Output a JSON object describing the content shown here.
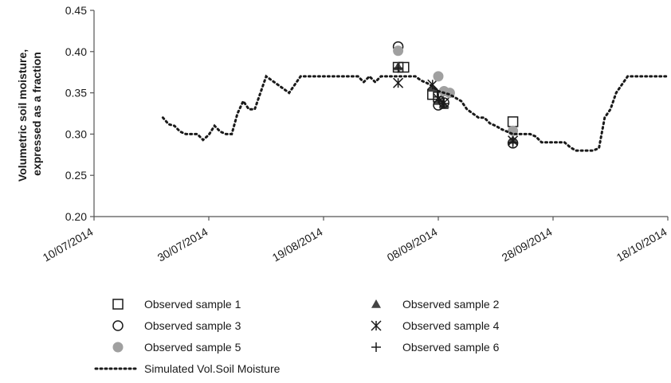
{
  "chart_data": {
    "type": "scatter",
    "title": "",
    "xlabel": "",
    "ylabel": [
      "Volumetric soil moisture,",
      "expressed as a fraction"
    ],
    "xlim": [
      "10/07/2014",
      "18/10/2014"
    ],
    "ylim": [
      0.2,
      0.45
    ],
    "x_ticks": [
      "10/07/2014",
      "30/07/2014",
      "19/08/2014",
      "08/09/2014",
      "28/09/2014",
      "18/10/2014"
    ],
    "y_ticks": [
      "0.20",
      "0.25",
      "0.30",
      "0.35",
      "0.40",
      "0.45"
    ],
    "grid": false,
    "legend_position": "bottom",
    "series": [
      {
        "name": "Observed sample 1",
        "marker": "square-open",
        "color": "#1a1a1a",
        "points": [
          [
            "01/09/2014",
            0.381
          ],
          [
            "02/09/2014",
            0.381
          ],
          [
            "07/09/2014",
            0.348
          ],
          [
            "08/09/2014",
            0.345
          ],
          [
            "21/09/2014",
            0.315
          ]
        ]
      },
      {
        "name": "Observed sample 2",
        "marker": "triangle-filled",
        "color": "#444444",
        "points": [
          [
            "01/09/2014",
            0.382
          ],
          [
            "07/09/2014",
            0.356
          ],
          [
            "08/09/2014",
            0.34
          ],
          [
            "09/09/2014",
            0.335
          ],
          [
            "21/09/2014",
            0.293
          ]
        ]
      },
      {
        "name": "Observed sample 3",
        "marker": "circle-open",
        "color": "#1a1a1a",
        "points": [
          [
            "01/09/2014",
            0.406
          ],
          [
            "08/09/2014",
            0.335
          ],
          [
            "09/09/2014",
            0.338
          ],
          [
            "21/09/2014",
            0.289
          ]
        ]
      },
      {
        "name": "Observed sample 4",
        "marker": "asterisk",
        "color": "#1a1a1a",
        "points": [
          [
            "01/09/2014",
            0.362
          ],
          [
            "07/09/2014",
            0.36
          ],
          [
            "08/09/2014",
            0.343
          ],
          [
            "09/09/2014",
            0.338
          ],
          [
            "21/09/2014",
            0.292
          ]
        ]
      },
      {
        "name": "Observed sample 5",
        "marker": "circle-filled",
        "color": "#a0a0a0",
        "points": [
          [
            "01/09/2014",
            0.401
          ],
          [
            "08/09/2014",
            0.37
          ],
          [
            "09/09/2014",
            0.352
          ],
          [
            "10/09/2014",
            0.35
          ],
          [
            "21/09/2014",
            0.304
          ]
        ]
      },
      {
        "name": "Observed sample 6",
        "marker": "plus",
        "color": "#1a1a1a",
        "points": [
          [
            "01/09/2014",
            0.38
          ],
          [
            "08/09/2014",
            0.345
          ],
          [
            "09/09/2014",
            0.337
          ],
          [
            "21/09/2014",
            0.29
          ]
        ]
      },
      {
        "name": "Simulated Vol.Soil Moisture",
        "marker": "dotted-line",
        "color": "#1a1a1a",
        "points": [
          [
            "22/07/2014",
            0.32
          ],
          [
            "23/07/2014",
            0.312
          ],
          [
            "24/07/2014",
            0.31
          ],
          [
            "25/07/2014",
            0.303
          ],
          [
            "26/07/2014",
            0.3
          ],
          [
            "27/07/2014",
            0.3
          ],
          [
            "28/07/2014",
            0.3
          ],
          [
            "29/07/2014",
            0.293
          ],
          [
            "30/07/2014",
            0.299
          ],
          [
            "31/07/2014",
            0.31
          ],
          [
            "01/08/2014",
            0.303
          ],
          [
            "02/08/2014",
            0.3
          ],
          [
            "03/08/2014",
            0.3
          ],
          [
            "04/08/2014",
            0.325
          ],
          [
            "05/08/2014",
            0.34
          ],
          [
            "06/08/2014",
            0.33
          ],
          [
            "07/08/2014",
            0.33
          ],
          [
            "08/08/2014",
            0.35
          ],
          [
            "09/08/2014",
            0.37
          ],
          [
            "10/08/2014",
            0.365
          ],
          [
            "11/08/2014",
            0.36
          ],
          [
            "12/08/2014",
            0.355
          ],
          [
            "13/08/2014",
            0.35
          ],
          [
            "14/08/2014",
            0.36
          ],
          [
            "15/08/2014",
            0.37
          ],
          [
            "20/08/2014",
            0.37
          ],
          [
            "25/08/2014",
            0.37
          ],
          [
            "26/08/2014",
            0.363
          ],
          [
            "27/08/2014",
            0.37
          ],
          [
            "28/08/2014",
            0.363
          ],
          [
            "29/08/2014",
            0.37
          ],
          [
            "31/08/2014",
            0.37
          ],
          [
            "02/09/2014",
            0.37
          ],
          [
            "04/09/2014",
            0.37
          ],
          [
            "05/09/2014",
            0.365
          ],
          [
            "06/09/2014",
            0.362
          ],
          [
            "07/09/2014",
            0.358
          ],
          [
            "08/09/2014",
            0.352
          ],
          [
            "09/09/2014",
            0.35
          ],
          [
            "10/09/2014",
            0.348
          ],
          [
            "12/09/2014",
            0.34
          ],
          [
            "13/09/2014",
            0.33
          ],
          [
            "14/09/2014",
            0.325
          ],
          [
            "15/09/2014",
            0.32
          ],
          [
            "16/09/2014",
            0.32
          ],
          [
            "17/09/2014",
            0.313
          ],
          [
            "18/09/2014",
            0.31
          ],
          [
            "19/09/2014",
            0.306
          ],
          [
            "20/09/2014",
            0.303
          ],
          [
            "21/09/2014",
            0.3
          ],
          [
            "24/09/2014",
            0.3
          ],
          [
            "25/09/2014",
            0.297
          ],
          [
            "26/09/2014",
            0.29
          ],
          [
            "27/09/2014",
            0.29
          ],
          [
            "30/09/2014",
            0.29
          ],
          [
            "01/10/2014",
            0.284
          ],
          [
            "02/10/2014",
            0.28
          ],
          [
            "05/10/2014",
            0.28
          ],
          [
            "06/10/2014",
            0.283
          ],
          [
            "07/10/2014",
            0.32
          ],
          [
            "08/10/2014",
            0.33
          ],
          [
            "09/10/2014",
            0.35
          ],
          [
            "10/10/2014",
            0.36
          ],
          [
            "11/10/2014",
            0.37
          ],
          [
            "14/10/2014",
            0.37
          ],
          [
            "18/10/2014",
            0.37
          ]
        ]
      }
    ]
  }
}
